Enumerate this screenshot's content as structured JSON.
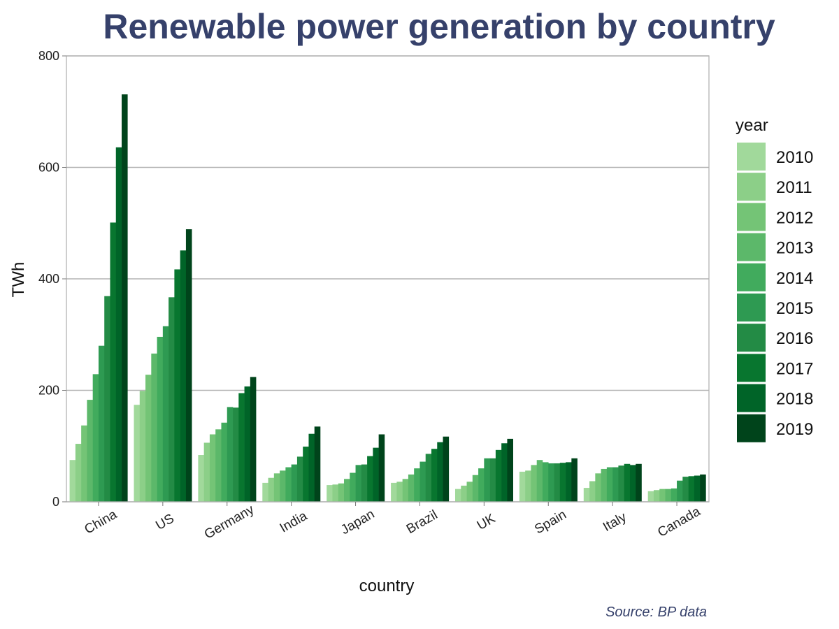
{
  "chart_data": {
    "type": "bar",
    "title": "Renewable power generation by country",
    "xlabel": "country",
    "ylabel": "TWh",
    "ylim": [
      0,
      800
    ],
    "yticks": [
      0,
      200,
      400,
      600,
      800
    ],
    "grid": "horizontal",
    "legend_title": "year",
    "legend_position": "right",
    "source": "Source: BP data",
    "categories": [
      "China",
      "US",
      "Germany",
      "India",
      "Japan",
      "Brazil",
      "UK",
      "Spain",
      "Italy",
      "Canada"
    ],
    "series": [
      {
        "name": "2010",
        "color": "#a1d99b",
        "values": [
          75,
          174,
          84,
          34,
          30,
          34,
          23,
          54,
          25,
          19
        ]
      },
      {
        "name": "2011",
        "color": "#8ccf88",
        "values": [
          104,
          199,
          106,
          43,
          31,
          36,
          29,
          56,
          37,
          21
        ]
      },
      {
        "name": "2012",
        "color": "#74c476",
        "values": [
          137,
          228,
          121,
          51,
          33,
          41,
          36,
          66,
          51,
          23
        ]
      },
      {
        "name": "2013",
        "color": "#5cb86a",
        "values": [
          183,
          266,
          130,
          56,
          41,
          49,
          48,
          75,
          59,
          23
        ]
      },
      {
        "name": "2014",
        "color": "#41ab5d",
        "values": [
          229,
          296,
          142,
          62,
          52,
          60,
          60,
          71,
          62,
          24
        ]
      },
      {
        "name": "2015",
        "color": "#2e9a52",
        "values": [
          280,
          315,
          170,
          67,
          66,
          72,
          78,
          69,
          62,
          38
        ]
      },
      {
        "name": "2016",
        "color": "#238b45",
        "values": [
          369,
          367,
          169,
          81,
          67,
          86,
          78,
          69,
          65,
          45
        ]
      },
      {
        "name": "2017",
        "color": "#08762f",
        "values": [
          501,
          417,
          195,
          99,
          82,
          95,
          93,
          70,
          68,
          46
        ]
      },
      {
        "name": "2018",
        "color": "#006428",
        "values": [
          636,
          451,
          207,
          122,
          97,
          107,
          105,
          71,
          66,
          47
        ]
      },
      {
        "name": "2019",
        "color": "#00441b",
        "values": [
          731,
          489,
          224,
          135,
          121,
          117,
          113,
          78,
          68,
          49
        ]
      }
    ]
  }
}
